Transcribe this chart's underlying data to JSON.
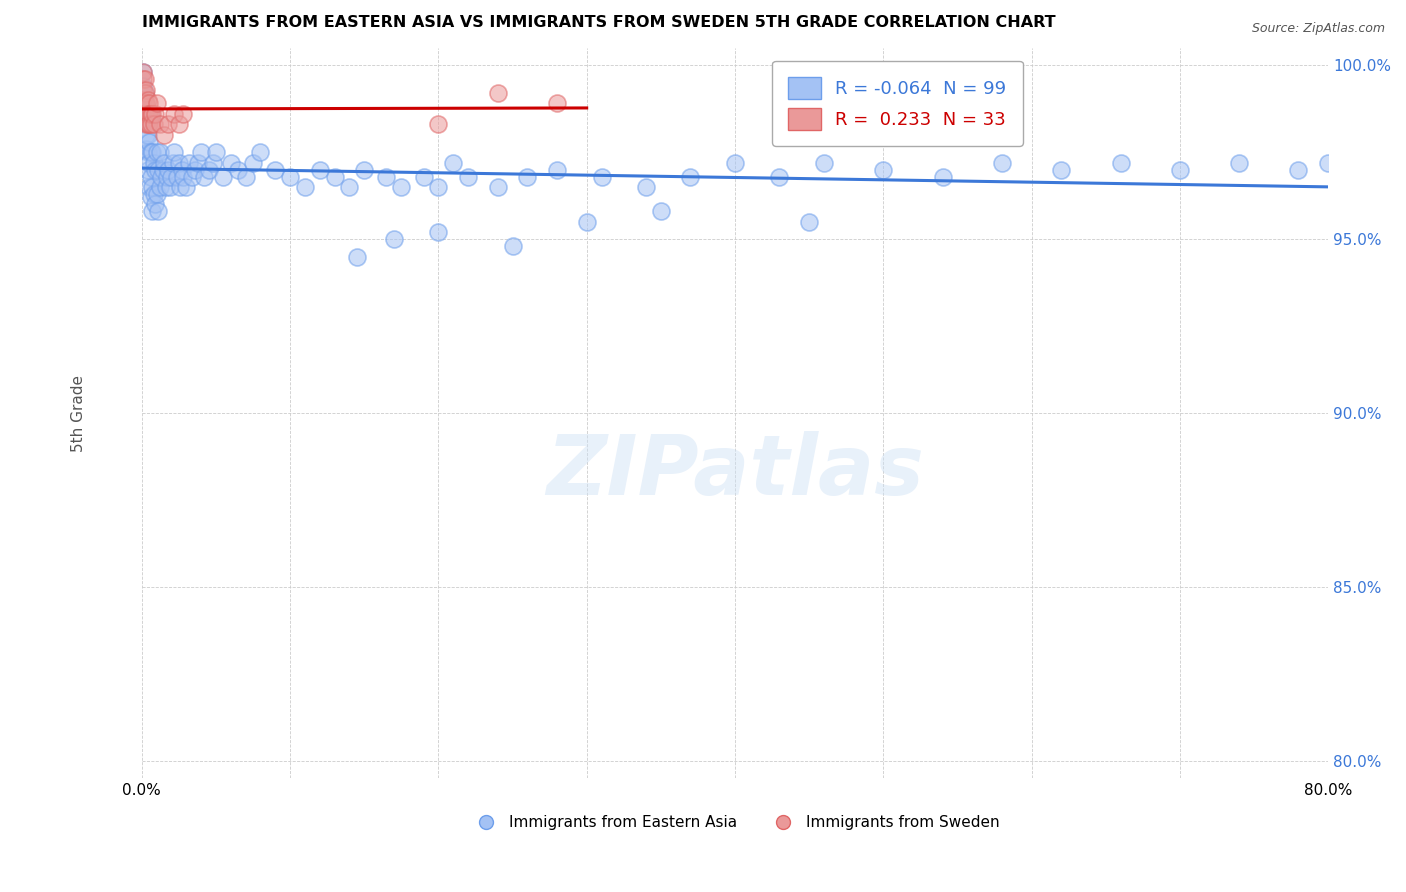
{
  "title": "IMMIGRANTS FROM EASTERN ASIA VS IMMIGRANTS FROM SWEDEN 5TH GRADE CORRELATION CHART",
  "source": "Source: ZipAtlas.com",
  "ylabel": "5th Grade",
  "xlim": [
    0.0,
    0.8
  ],
  "ylim": [
    0.795,
    1.005
  ],
  "xticks": [
    0.0,
    0.1,
    0.2,
    0.3,
    0.4,
    0.5,
    0.6,
    0.7,
    0.8
  ],
  "xticklabels": [
    "0.0%",
    "",
    "",
    "",
    "",
    "",
    "",
    "",
    "80.0%"
  ],
  "yticks": [
    0.8,
    0.85,
    0.9,
    0.95,
    1.0
  ],
  "yticklabels": [
    "80.0%",
    "85.0%",
    "90.0%",
    "95.0%",
    "100.0%"
  ],
  "blue_color": "#a4c2f4",
  "pink_color": "#ea9999",
  "blue_edge": "#6d9eeb",
  "pink_edge": "#e06666",
  "trend_blue": "#3c78d8",
  "trend_pink": "#cc0000",
  "R_blue": -0.064,
  "N_blue": 99,
  "R_pink": 0.233,
  "N_pink": 33,
  "legend_label_blue": "Immigrants from Eastern Asia",
  "legend_label_pink": "Immigrants from Sweden",
  "blue_scatter_x": [
    0.001,
    0.001,
    0.002,
    0.002,
    0.003,
    0.003,
    0.003,
    0.004,
    0.004,
    0.004,
    0.005,
    0.005,
    0.005,
    0.006,
    0.006,
    0.006,
    0.006,
    0.007,
    0.007,
    0.007,
    0.008,
    0.008,
    0.009,
    0.009,
    0.01,
    0.01,
    0.011,
    0.011,
    0.012,
    0.012,
    0.013,
    0.014,
    0.015,
    0.016,
    0.017,
    0.018,
    0.019,
    0.02,
    0.021,
    0.022,
    0.024,
    0.025,
    0.026,
    0.027,
    0.028,
    0.03,
    0.032,
    0.034,
    0.036,
    0.038,
    0.04,
    0.042,
    0.045,
    0.048,
    0.05,
    0.055,
    0.06,
    0.065,
    0.07,
    0.075,
    0.08,
    0.09,
    0.1,
    0.11,
    0.12,
    0.13,
    0.14,
    0.15,
    0.165,
    0.175,
    0.19,
    0.2,
    0.21,
    0.22,
    0.24,
    0.26,
    0.28,
    0.31,
    0.34,
    0.37,
    0.4,
    0.43,
    0.46,
    0.5,
    0.54,
    0.58,
    0.62,
    0.66,
    0.7,
    0.74,
    0.78,
    0.8,
    0.45,
    0.35,
    0.3,
    0.25,
    0.2,
    0.17,
    0.145
  ],
  "blue_scatter_y": [
    0.998,
    0.994,
    0.992,
    0.987,
    0.985,
    0.98,
    0.976,
    0.98,
    0.975,
    0.97,
    0.978,
    0.972,
    0.965,
    0.975,
    0.968,
    0.962,
    0.985,
    0.975,
    0.965,
    0.958,
    0.972,
    0.963,
    0.97,
    0.96,
    0.975,
    0.963,
    0.97,
    0.958,
    0.975,
    0.965,
    0.968,
    0.97,
    0.972,
    0.965,
    0.968,
    0.97,
    0.965,
    0.968,
    0.972,
    0.975,
    0.968,
    0.972,
    0.965,
    0.97,
    0.968,
    0.965,
    0.972,
    0.968,
    0.97,
    0.972,
    0.975,
    0.968,
    0.97,
    0.972,
    0.975,
    0.968,
    0.972,
    0.97,
    0.968,
    0.972,
    0.975,
    0.97,
    0.968,
    0.965,
    0.97,
    0.968,
    0.965,
    0.97,
    0.968,
    0.965,
    0.968,
    0.965,
    0.972,
    0.968,
    0.965,
    0.968,
    0.97,
    0.968,
    0.965,
    0.968,
    0.972,
    0.968,
    0.972,
    0.97,
    0.968,
    0.972,
    0.97,
    0.972,
    0.97,
    0.972,
    0.97,
    0.972,
    0.955,
    0.958,
    0.955,
    0.948,
    0.952,
    0.95,
    0.945
  ],
  "pink_scatter_x": [
    0.001,
    0.001,
    0.001,
    0.001,
    0.002,
    0.002,
    0.002,
    0.002,
    0.003,
    0.003,
    0.003,
    0.003,
    0.004,
    0.004,
    0.004,
    0.005,
    0.005,
    0.005,
    0.006,
    0.006,
    0.007,
    0.008,
    0.009,
    0.01,
    0.012,
    0.015,
    0.018,
    0.022,
    0.025,
    0.028,
    0.2,
    0.24,
    0.28
  ],
  "pink_scatter_y": [
    0.998,
    0.996,
    0.993,
    0.99,
    0.996,
    0.992,
    0.989,
    0.986,
    0.993,
    0.989,
    0.986,
    0.983,
    0.99,
    0.986,
    0.983,
    0.989,
    0.986,
    0.983,
    0.986,
    0.983,
    0.986,
    0.983,
    0.986,
    0.989,
    0.983,
    0.98,
    0.983,
    0.986,
    0.983,
    0.986,
    0.983,
    0.992,
    0.989
  ]
}
